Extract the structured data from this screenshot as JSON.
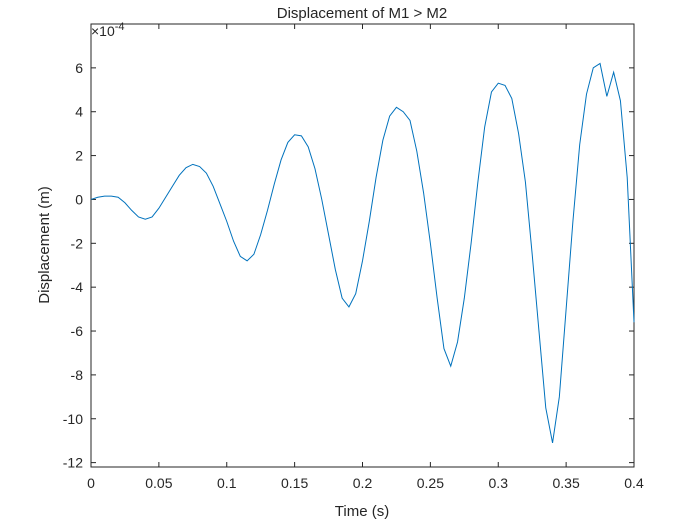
{
  "chart_data": {
    "type": "line",
    "title": "Displacement of M1 > M2",
    "xlabel": "Time (s)",
    "ylabel": "Displacement (m)",
    "y_exponent": {
      "base": "×10",
      "power": "-4"
    },
    "color": "#0072bd",
    "x": [
      0,
      0.005,
      0.01,
      0.015,
      0.02,
      0.025,
      0.03,
      0.035,
      0.04,
      0.045,
      0.05,
      0.055,
      0.06,
      0.065,
      0.07,
      0.075,
      0.08,
      0.085,
      0.09,
      0.095,
      0.1,
      0.105,
      0.11,
      0.115,
      0.12,
      0.125,
      0.13,
      0.135,
      0.14,
      0.145,
      0.15,
      0.155,
      0.16,
      0.165,
      0.17,
      0.175,
      0.18,
      0.185,
      0.19,
      0.195,
      0.2,
      0.205,
      0.21,
      0.215,
      0.22,
      0.225,
      0.23,
      0.235,
      0.24,
      0.245,
      0.25,
      0.255,
      0.26,
      0.265,
      0.27,
      0.275,
      0.28,
      0.285,
      0.29,
      0.295,
      0.3,
      0.305,
      0.31,
      0.315,
      0.32,
      0.325,
      0.33,
      0.335,
      0.34,
      0.345,
      0.35,
      0.355,
      0.36,
      0.365,
      0.37,
      0.375,
      0.38,
      0.385,
      0.39,
      0.395,
      0.4
    ],
    "values": [
      0,
      0.1,
      0.15,
      0.15,
      0.1,
      -0.15,
      -0.5,
      -0.8,
      -0.9,
      -0.8,
      -0.4,
      0.1,
      0.6,
      1.1,
      1.45,
      1.6,
      1.5,
      1.2,
      0.6,
      -0.2,
      -1.0,
      -1.9,
      -2.6,
      -2.8,
      -2.5,
      -1.6,
      -0.5,
      0.7,
      1.8,
      2.6,
      2.95,
      2.9,
      2.4,
      1.4,
      0.0,
      -1.6,
      -3.2,
      -4.5,
      -4.9,
      -4.3,
      -2.8,
      -1.0,
      1.0,
      2.7,
      3.8,
      4.2,
      4.0,
      3.6,
      2.2,
      0.3,
      -2.0,
      -4.5,
      -6.8,
      -7.6,
      -6.5,
      -4.5,
      -2.0,
      0.8,
      3.3,
      4.9,
      5.3,
      5.2,
      4.6,
      3.0,
      0.8,
      -2.5,
      -6.0,
      -9.5,
      -11.1,
      -9.0,
      -5.0,
      -1.0,
      2.5,
      4.8,
      6.0,
      6.2,
      4.7,
      5.8,
      4.5,
      1.0,
      -5.6
    ],
    "xlim": [
      0,
      0.4
    ],
    "xticks": [
      0,
      0.05,
      0.1,
      0.15,
      0.2,
      0.25,
      0.3,
      0.35,
      0.4
    ],
    "ylim": [
      -12.2,
      8
    ],
    "yticks": [
      -12,
      -10,
      -8,
      -6,
      -4,
      -2,
      0,
      2,
      4,
      6
    ]
  }
}
